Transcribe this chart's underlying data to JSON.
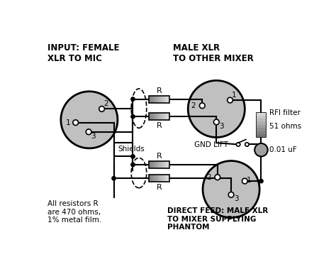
{
  "bg_color": "#ffffff",
  "connector_fill": "#c0c0c0",
  "connector_edge": "#000000",
  "resistor_fill_left": "#b0b0b0",
  "resistor_fill_right": "#e0e0e0",
  "line_color": "#000000",
  "text_color": "#000000",
  "labels": {
    "input": "INPUT: FEMALE\nXLR TO MIC",
    "male_top": "MALE XLR\nTO OTHER MIXER",
    "shields": "Shields",
    "gnd_lift": "GND LIFT",
    "rfi_filter": "RFI filter",
    "ohms_51": "51 ohms",
    "cap": "0.01 uF",
    "resistors_note": "All resistors R\nare 470 ohms,\n1% metal film.",
    "direct_feed": "DIRECT FEED: MALE XLR\nTO MIXER SUPPLYING\nPHANTOM"
  }
}
